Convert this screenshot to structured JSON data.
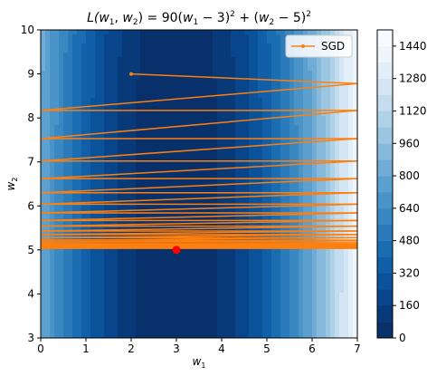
{
  "chart_data": {
    "type": "contour",
    "title": "L(w₁, w₂) = 90(w₁ − 3)² + (w₂ − 5)²",
    "title_parts": {
      "prefix": "L(",
      "w1": "w",
      "w1_sub": "1",
      "comma": ", ",
      "w2": "w",
      "w2_sub": "2",
      "mid": ") = 90(",
      "w1b": "w",
      "w1b_sub": "1",
      "mid2": " − 3)",
      "sq1": "2",
      "plus": " + (",
      "w2b": "w",
      "w2b_sub": "2",
      "mid3": " − 5)",
      "sq2": "2"
    },
    "xlabel": {
      "base": "w",
      "sub": "1"
    },
    "ylabel": {
      "base": "w",
      "sub": "2"
    },
    "xlim": [
      0,
      7
    ],
    "ylim": [
      3,
      10
    ],
    "xticks": [
      0,
      1,
      2,
      3,
      4,
      5,
      6,
      7
    ],
    "yticks": [
      3,
      4,
      5,
      6,
      7,
      8,
      9,
      10
    ],
    "contour_levels": [
      0,
      80,
      160,
      240,
      320,
      400,
      480,
      560,
      640,
      720,
      800,
      880,
      960,
      1040,
      1120,
      1200,
      1280,
      1360,
      1440,
      1520
    ],
    "contour_colors": [
      "#08306b",
      "#083a7a",
      "#08458a",
      "#0a529a",
      "#115fa8",
      "#1b6db2",
      "#2b7bba",
      "#3a88c1",
      "#4b94c8",
      "#5ca0cf",
      "#70acd5",
      "#86b9db",
      "#9bc6e1",
      "#b0d2e8",
      "#c3ddee",
      "#d4e6f3",
      "#e2eef8",
      "#eef5fb",
      "#f7fbff"
    ],
    "colorbar_ticks": [
      0,
      160,
      320,
      480,
      640,
      800,
      960,
      1120,
      1280,
      1440
    ],
    "legend": {
      "label": "SGD",
      "placement": "upper right"
    },
    "series": [
      {
        "name": "SGD",
        "color": "#ff7f0e",
        "w1": [
          2,
          7,
          0,
          7,
          0,
          7,
          0,
          7,
          0,
          7,
          0,
          7,
          0,
          7,
          0,
          7,
          0,
          7,
          0,
          7,
          0,
          7,
          0,
          7,
          0,
          7,
          0,
          7,
          0,
          7
        ],
        "w2": [
          9.0,
          8.78,
          8.17,
          8.17,
          7.53,
          7.53,
          7.02,
          7.02,
          6.62,
          6.62,
          6.3,
          6.3,
          6.04,
          6.04,
          5.84,
          5.84,
          5.67,
          5.67,
          5.54,
          5.54,
          5.43,
          5.43,
          5.35,
          5.35,
          5.28,
          5.28,
          5.22,
          5.22,
          5.18,
          5.18
        ],
        "converged_band": [
          5.02,
          5.16
        ]
      }
    ],
    "minimum": {
      "w1": 3,
      "w2": 5,
      "color": "#ff0000"
    },
    "grid": false
  }
}
